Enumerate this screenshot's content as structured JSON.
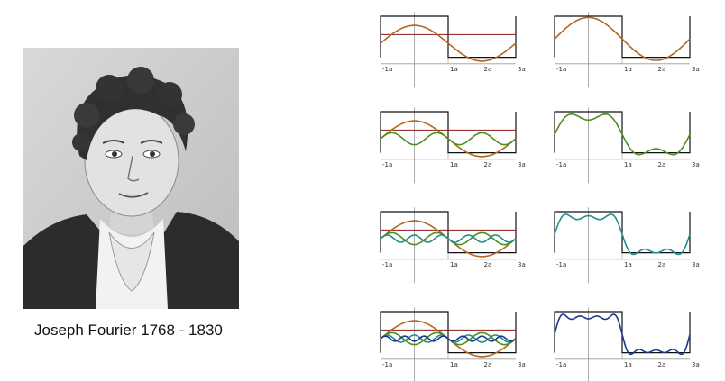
{
  "caption": "Joseph Fourier 1768 - 1830",
  "portrait": {
    "icon": "portrait-engraving-icon"
  },
  "tick_labels": [
    "-1a",
    "1a",
    "2a",
    "3a"
  ],
  "chart_data": {
    "type": "line",
    "description_of_series": "Fourier series partial sums of a square wave",
    "x_range": [
      -1,
      3
    ],
    "rows": [
      {
        "terms": [
          1
        ]
      },
      {
        "terms": [
          1,
          3
        ]
      },
      {
        "terms": [
          1,
          3,
          5
        ]
      },
      {
        "terms": [
          1,
          3,
          5,
          7
        ]
      }
    ]
  },
  "colors": {
    "square": "#111111",
    "mean": "#8b1a1a",
    "h1": "#b5651d",
    "h3": "#4a8f1c",
    "h5": "#1f8f8f",
    "h7": "#1a3a8f",
    "axis": "#999999"
  }
}
